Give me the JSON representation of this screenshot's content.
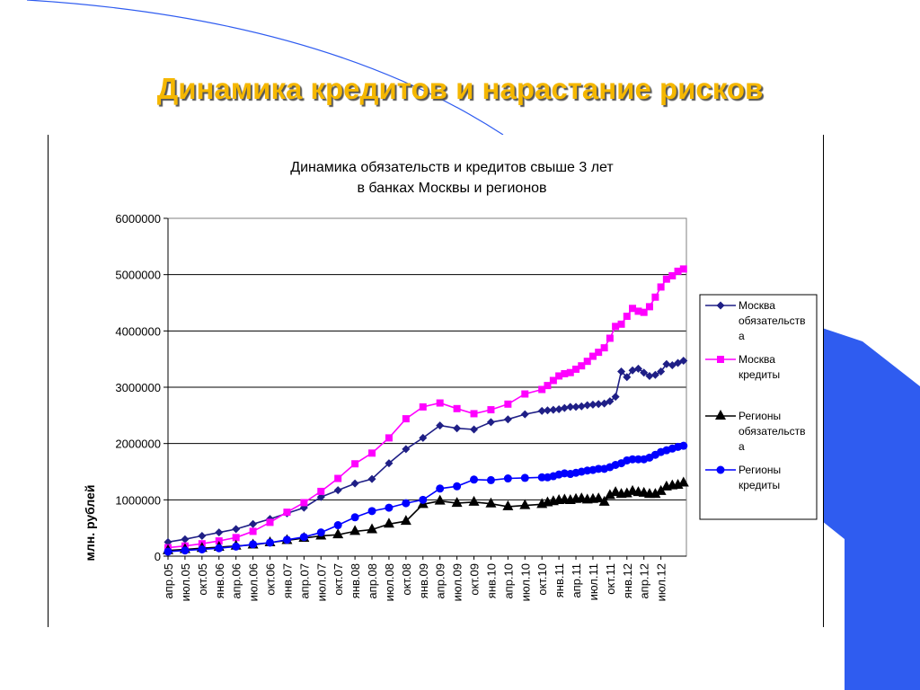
{
  "slide": {
    "title": "Динамика кредитов и нарастание рисков",
    "accent_title": "#f5b700",
    "accent_shape": "#2f5cf0"
  },
  "chart_data": {
    "type": "line",
    "title_lines": [
      "Динамика обязательств и кредитов свыше 3 лет",
      "в банках Москвы и регионов"
    ],
    "ylabel": "млн. рублей",
    "ylim": [
      0,
      6000000
    ],
    "yticks": [
      0,
      1000000,
      2000000,
      3000000,
      4000000,
      5000000,
      6000000
    ],
    "ytick_labels": [
      "0",
      "1000000",
      "2000000",
      "3000000",
      "4000000",
      "5000000",
      "6000000"
    ],
    "grid": true,
    "legend_position": "right",
    "x_labels": [
      "апр.05",
      "июл.05",
      "окт.05",
      "янв.06",
      "апр.06",
      "июл.06",
      "окт.06",
      "янв.07",
      "апр.07",
      "июл.07",
      "окт.07",
      "янв.08",
      "апр.08",
      "июл.08",
      "окт.08",
      "янв.09",
      "апр.09",
      "июл.09",
      "окт.09",
      "янв.10",
      "апр.10",
      "июл.10",
      "окт.10",
      "янв.11",
      "апр.11",
      "июл.11",
      "окт.11",
      "янв.12",
      "апр.12",
      "июл.12"
    ],
    "series": [
      {
        "name": "Москва обязательства",
        "legend_lines": [
          "Москва",
          "обязательств",
          "а"
        ],
        "color": "#1f1f86",
        "marker": "diamond",
        "points": [
          [
            0,
            250000
          ],
          [
            1,
            300000
          ],
          [
            2,
            360000
          ],
          [
            3,
            420000
          ],
          [
            4,
            480000
          ],
          [
            5,
            570000
          ],
          [
            6,
            660000
          ],
          [
            7,
            760000
          ],
          [
            8,
            860000
          ],
          [
            9,
            1050000
          ],
          [
            10,
            1170000
          ],
          [
            11,
            1290000
          ],
          [
            12,
            1370000
          ],
          [
            13,
            1650000
          ],
          [
            14,
            1900000
          ],
          [
            15,
            2100000
          ],
          [
            16,
            2320000
          ],
          [
            17,
            2270000
          ],
          [
            18,
            2250000
          ],
          [
            19,
            2380000
          ],
          [
            20,
            2430000
          ],
          [
            21,
            2520000
          ],
          [
            22,
            2580000
          ],
          [
            22.33,
            2590000
          ],
          [
            22.67,
            2600000
          ],
          [
            23,
            2610000
          ],
          [
            23.33,
            2630000
          ],
          [
            23.67,
            2650000
          ],
          [
            24,
            2650000
          ],
          [
            24.33,
            2660000
          ],
          [
            24.67,
            2680000
          ],
          [
            25,
            2690000
          ],
          [
            25.33,
            2700000
          ],
          [
            25.67,
            2710000
          ],
          [
            26,
            2750000
          ],
          [
            26.33,
            2830000
          ],
          [
            26.67,
            3280000
          ],
          [
            27,
            3180000
          ],
          [
            27.33,
            3300000
          ],
          [
            27.67,
            3330000
          ],
          [
            28,
            3260000
          ],
          [
            28.33,
            3200000
          ],
          [
            28.67,
            3220000
          ],
          [
            29,
            3280000
          ],
          [
            29.33,
            3410000
          ],
          [
            29.67,
            3390000
          ],
          [
            30,
            3430000
          ],
          [
            30.33,
            3470000
          ]
        ]
      },
      {
        "name": "Москва кредиты",
        "legend_lines": [
          "Москва",
          "кредиты"
        ],
        "color": "#ff00ff",
        "marker": "square",
        "points": [
          [
            0,
            150000
          ],
          [
            1,
            180000
          ],
          [
            2,
            220000
          ],
          [
            3,
            270000
          ],
          [
            4,
            330000
          ],
          [
            5,
            440000
          ],
          [
            6,
            600000
          ],
          [
            7,
            780000
          ],
          [
            8,
            950000
          ],
          [
            9,
            1150000
          ],
          [
            10,
            1380000
          ],
          [
            11,
            1640000
          ],
          [
            12,
            1830000
          ],
          [
            13,
            2100000
          ],
          [
            14,
            2440000
          ],
          [
            15,
            2650000
          ],
          [
            16,
            2720000
          ],
          [
            17,
            2620000
          ],
          [
            18,
            2530000
          ],
          [
            19,
            2600000
          ],
          [
            20,
            2700000
          ],
          [
            21,
            2880000
          ],
          [
            22,
            2960000
          ],
          [
            22.33,
            3030000
          ],
          [
            22.67,
            3120000
          ],
          [
            23,
            3200000
          ],
          [
            23.33,
            3240000
          ],
          [
            23.67,
            3260000
          ],
          [
            24,
            3320000
          ],
          [
            24.33,
            3380000
          ],
          [
            24.67,
            3460000
          ],
          [
            25,
            3550000
          ],
          [
            25.33,
            3620000
          ],
          [
            25.67,
            3700000
          ],
          [
            26,
            3870000
          ],
          [
            26.33,
            4080000
          ],
          [
            26.67,
            4120000
          ],
          [
            27,
            4260000
          ],
          [
            27.33,
            4400000
          ],
          [
            27.67,
            4350000
          ],
          [
            28,
            4330000
          ],
          [
            28.33,
            4430000
          ],
          [
            28.67,
            4600000
          ],
          [
            29,
            4780000
          ],
          [
            29.33,
            4920000
          ],
          [
            29.67,
            4980000
          ],
          [
            30,
            5060000
          ],
          [
            30.33,
            5100000
          ]
        ]
      },
      {
        "name": "Регионы обязательства",
        "legend_lines": [
          "Регионы",
          "обязательств",
          "а"
        ],
        "color": "#000000",
        "marker": "triangle",
        "points": [
          [
            0,
            100000
          ],
          [
            1,
            120000
          ],
          [
            2,
            140000
          ],
          [
            3,
            160000
          ],
          [
            4,
            180000
          ],
          [
            5,
            200000
          ],
          [
            6,
            240000
          ],
          [
            7,
            280000
          ],
          [
            8,
            320000
          ],
          [
            9,
            360000
          ],
          [
            10,
            380000
          ],
          [
            11,
            440000
          ],
          [
            12,
            470000
          ],
          [
            13,
            570000
          ],
          [
            14,
            620000
          ],
          [
            15,
            920000
          ],
          [
            16,
            980000
          ],
          [
            17,
            940000
          ],
          [
            18,
            960000
          ],
          [
            19,
            930000
          ],
          [
            20,
            880000
          ],
          [
            21,
            900000
          ],
          [
            22,
            920000
          ],
          [
            22.33,
            950000
          ],
          [
            22.67,
            970000
          ],
          [
            23,
            990000
          ],
          [
            23.33,
            1000000
          ],
          [
            23.67,
            990000
          ],
          [
            24,
            1010000
          ],
          [
            24.33,
            1020000
          ],
          [
            24.67,
            1000000
          ],
          [
            25,
            1010000
          ],
          [
            25.33,
            1020000
          ],
          [
            25.67,
            960000
          ],
          [
            26,
            1080000
          ],
          [
            26.33,
            1130000
          ],
          [
            26.67,
            1100000
          ],
          [
            27,
            1110000
          ],
          [
            27.33,
            1150000
          ],
          [
            27.67,
            1130000
          ],
          [
            28,
            1120000
          ],
          [
            28.33,
            1100000
          ],
          [
            28.67,
            1100000
          ],
          [
            29,
            1150000
          ],
          [
            29.33,
            1230000
          ],
          [
            29.67,
            1250000
          ],
          [
            30,
            1260000
          ],
          [
            30.33,
            1300000
          ]
        ]
      },
      {
        "name": "Регионы кредиты",
        "legend_lines": [
          "Регионы",
          "кредиты"
        ],
        "color": "#0000ff",
        "marker": "circle",
        "points": [
          [
            0,
            80000
          ],
          [
            1,
            100000
          ],
          [
            2,
            120000
          ],
          [
            3,
            140000
          ],
          [
            4,
            170000
          ],
          [
            5,
            210000
          ],
          [
            6,
            240000
          ],
          [
            7,
            290000
          ],
          [
            8,
            340000
          ],
          [
            9,
            420000
          ],
          [
            10,
            550000
          ],
          [
            11,
            690000
          ],
          [
            12,
            800000
          ],
          [
            13,
            860000
          ],
          [
            14,
            940000
          ],
          [
            15,
            1000000
          ],
          [
            16,
            1200000
          ],
          [
            17,
            1240000
          ],
          [
            18,
            1360000
          ],
          [
            19,
            1350000
          ],
          [
            20,
            1380000
          ],
          [
            21,
            1390000
          ],
          [
            22,
            1400000
          ],
          [
            22.33,
            1400000
          ],
          [
            22.67,
            1420000
          ],
          [
            23,
            1450000
          ],
          [
            23.33,
            1470000
          ],
          [
            23.67,
            1460000
          ],
          [
            24,
            1480000
          ],
          [
            24.33,
            1500000
          ],
          [
            24.67,
            1520000
          ],
          [
            25,
            1530000
          ],
          [
            25.33,
            1550000
          ],
          [
            25.67,
            1550000
          ],
          [
            26,
            1580000
          ],
          [
            26.33,
            1620000
          ],
          [
            26.67,
            1650000
          ],
          [
            27,
            1700000
          ],
          [
            27.33,
            1720000
          ],
          [
            27.67,
            1720000
          ],
          [
            28,
            1720000
          ],
          [
            28.33,
            1750000
          ],
          [
            28.67,
            1800000
          ],
          [
            29,
            1850000
          ],
          [
            29.33,
            1880000
          ],
          [
            29.67,
            1910000
          ],
          [
            30,
            1940000
          ],
          [
            30.33,
            1960000
          ]
        ]
      }
    ]
  }
}
